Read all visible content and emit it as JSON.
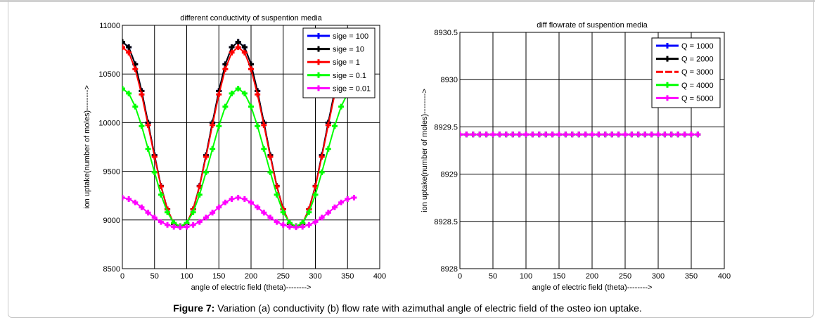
{
  "caption": {
    "label": "Figure 7:",
    "text": " Variation (a) conductivity (b) flow rate with azimuthal angle of electric field of the osteo ion uptake."
  },
  "chart_data": [
    {
      "type": "line",
      "title": "different conductivity  of suspention media",
      "xlabel": "angle of electric field (theta)-------->",
      "ylabel": "ion uptake(number of moles)-------->",
      "xlim": [
        0,
        400
      ],
      "ylim": [
        8500,
        11000
      ],
      "xticks": [
        "0",
        "50",
        "100",
        "150",
        "200",
        "250",
        "300",
        "350",
        "400"
      ],
      "yticks": [
        "8500",
        "9000",
        "9500",
        "10000",
        "10500",
        "11000"
      ],
      "grid": true,
      "legend_position": "top-right",
      "x": [
        0,
        10,
        20,
        30,
        40,
        50,
        60,
        70,
        80,
        90,
        100,
        110,
        120,
        130,
        140,
        150,
        160,
        170,
        180,
        190,
        200,
        210,
        220,
        230,
        240,
        250,
        260,
        270,
        280,
        290,
        300,
        310,
        320,
        330,
        340,
        350,
        360
      ],
      "series": [
        {
          "name": "sige = 100",
          "color": "#0000ff",
          "values": [
            10830,
            10775,
            10600,
            10325,
            10000,
            9665,
            9350,
            9110,
            8960,
            8935,
            8960,
            9110,
            9350,
            9665,
            10000,
            10325,
            10600,
            10775,
            10830,
            10775,
            10600,
            10325,
            10000,
            9665,
            9350,
            9110,
            8960,
            8935,
            8960,
            9110,
            9350,
            9665,
            10000,
            10325,
            10600,
            10775,
            10830
          ]
        },
        {
          "name": "sige = 10",
          "color": "#000000",
          "values": [
            10830,
            10775,
            10600,
            10325,
            10000,
            9665,
            9350,
            9110,
            8960,
            8935,
            8960,
            9110,
            9350,
            9665,
            10000,
            10325,
            10600,
            10775,
            10830,
            10775,
            10600,
            10325,
            10000,
            9665,
            9350,
            9110,
            8960,
            8935,
            8960,
            9110,
            9350,
            9665,
            10000,
            10325,
            10600,
            10775,
            10830
          ]
        },
        {
          "name": "sige = 1",
          "color": "#ff0000",
          "values": [
            10775,
            10720,
            10550,
            10290,
            9975,
            9650,
            9345,
            9110,
            8965,
            8935,
            8965,
            9110,
            9345,
            9650,
            9975,
            10290,
            10550,
            10720,
            10775,
            10720,
            10550,
            10290,
            9975,
            9650,
            9345,
            9110,
            8965,
            8935,
            8965,
            9110,
            9345,
            9650,
            9975,
            10290,
            10550,
            10720,
            10775
          ]
        },
        {
          "name": "sige = 0.1",
          "color": "#00ff00",
          "values": [
            10350,
            10300,
            10165,
            9965,
            9730,
            9490,
            9260,
            9080,
            8970,
            8935,
            8970,
            9080,
            9260,
            9490,
            9730,
            9965,
            10165,
            10300,
            10350,
            10300,
            10165,
            9965,
            9730,
            9490,
            9260,
            9080,
            8970,
            8935,
            8970,
            9080,
            9260,
            9490,
            9730,
            9965,
            10165,
            10300,
            10350
          ]
        },
        {
          "name": "sige = 0.01",
          "color": "#ff00ff",
          "values": [
            9230,
            9215,
            9180,
            9130,
            9075,
            9025,
            8980,
            8950,
            8930,
            8925,
            8930,
            8950,
            8980,
            9025,
            9075,
            9130,
            9180,
            9215,
            9230,
            9215,
            9180,
            9130,
            9075,
            9025,
            8980,
            8950,
            8930,
            8925,
            8930,
            8950,
            8980,
            9025,
            9075,
            9130,
            9180,
            9215,
            9230
          ]
        }
      ]
    },
    {
      "type": "line",
      "title": "diff flowrate of suspention media",
      "xlabel": "angle of electric field (theta)-------->",
      "ylabel": "ion uptake(number of moles)-------->",
      "xlim": [
        0,
        400
      ],
      "ylim": [
        8928,
        8930.5
      ],
      "xticks": [
        "0",
        "50",
        "100",
        "150",
        "200",
        "250",
        "300",
        "350",
        "400"
      ],
      "yticks": [
        "8928",
        "8928.5",
        "8929",
        "8929.5",
        "8930",
        "8930.5"
      ],
      "grid": true,
      "legend_position": "top-right",
      "x": [
        0,
        10,
        20,
        30,
        40,
        50,
        60,
        70,
        80,
        90,
        100,
        110,
        120,
        130,
        140,
        150,
        160,
        170,
        180,
        190,
        200,
        210,
        220,
        230,
        240,
        250,
        260,
        270,
        280,
        290,
        300,
        310,
        320,
        330,
        340,
        350,
        360
      ],
      "series": [
        {
          "name": "Q = 1000",
          "color": "#0000ff",
          "constant": 8929.42
        },
        {
          "name": "Q = 2000",
          "color": "#000000",
          "constant": 8929.42
        },
        {
          "name": "Q = 3000",
          "color": "#ff0000",
          "constant": 8929.42,
          "dashed": true
        },
        {
          "name": "Q = 4000",
          "color": "#00ff00",
          "constant": 8929.42
        },
        {
          "name": "Q = 5000",
          "color": "#ff00ff",
          "constant": 8929.42
        }
      ]
    }
  ]
}
